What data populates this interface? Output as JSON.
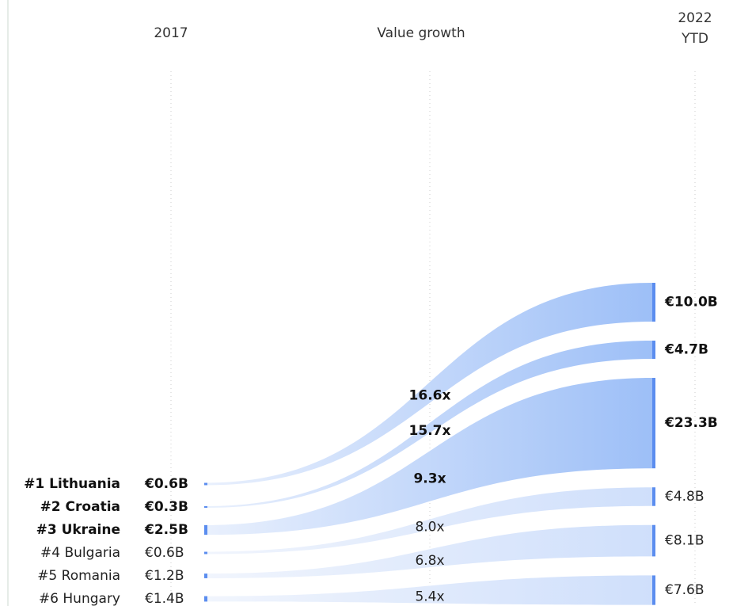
{
  "chart_data": {
    "type": "sankey",
    "categories": [
      "#1 Lithuania",
      "#2 Croatia",
      "#3 Ukraine",
      "#4 Bulgaria",
      "#5 Romania",
      "#6 Hungary"
    ],
    "series": [
      {
        "name": "2017",
        "values": [
          0.6,
          0.3,
          2.5,
          0.6,
          1.2,
          1.4
        ],
        "value_labels": [
          "€0.6B",
          "€0.3B",
          "€2.5B",
          "€0.6B",
          "€1.2B",
          "€1.4B"
        ]
      },
      {
        "name": "2022 YTD",
        "values": [
          10.0,
          4.7,
          23.3,
          4.8,
          8.1,
          7.6
        ],
        "value_labels": [
          "€10.0B",
          "€4.7B",
          "€23.3B",
          "€4.8B",
          "€8.1B",
          "€7.6B"
        ]
      }
    ],
    "growth": {
      "name": "Value growth",
      "values": [
        16.6,
        15.7,
        9.3,
        8.0,
        6.8,
        5.4
      ],
      "value_labels": [
        "16.6x",
        "15.7x",
        "9.3x",
        "8.0x",
        "6.8x",
        "5.4x"
      ]
    },
    "color": "#5b8def",
    "highlight_top": 3
  }
}
